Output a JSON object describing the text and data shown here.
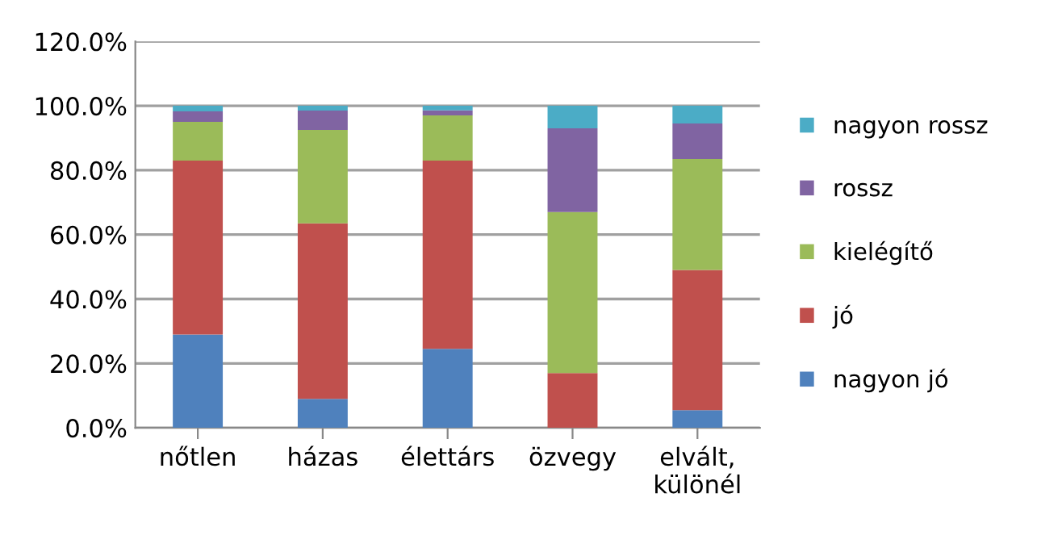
{
  "chart_data": {
    "type": "bar",
    "stacked": true,
    "categories": [
      "nőtlen",
      "házas",
      "élettárs",
      "özvegy",
      "elvált,\nkülönél"
    ],
    "series": [
      {
        "name": "nagyon jó",
        "color": "#4f81bd",
        "values": [
          29,
          9,
          24.5,
          0,
          5.5
        ]
      },
      {
        "name": "jó",
        "color": "#c0504d",
        "values": [
          54,
          54.5,
          58.5,
          17,
          43.5
        ]
      },
      {
        "name": "kielégítő",
        "color": "#9bbb59",
        "values": [
          12,
          29,
          14,
          50,
          34.5
        ]
      },
      {
        "name": "rossz",
        "color": "#8064a2",
        "values": [
          3.3,
          6,
          1.6,
          26,
          11
        ]
      },
      {
        "name": "nagyon rossz",
        "color": "#4bacc6",
        "values": [
          1.7,
          1.5,
          1.4,
          7,
          5.5
        ]
      }
    ],
    "ylim": [
      0,
      120
    ],
    "yticks": [
      {
        "value": 0,
        "label": "0.0%"
      },
      {
        "value": 20,
        "label": "20.0%"
      },
      {
        "value": 40,
        "label": "40.0%"
      },
      {
        "value": 60,
        "label": "60.0%"
      },
      {
        "value": 80,
        "label": "80.0%"
      },
      {
        "value": 100,
        "label": "100.0%"
      },
      {
        "value": 120,
        "label": "120.0%"
      }
    ],
    "grid": "y",
    "legend": "right"
  }
}
